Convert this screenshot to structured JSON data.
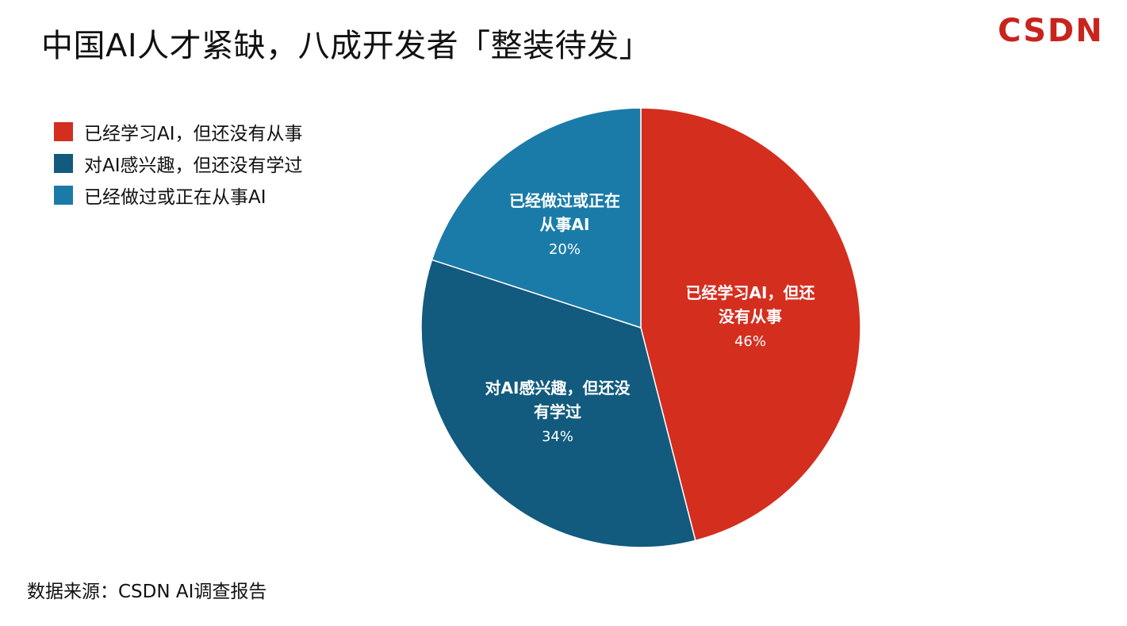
{
  "title": "中国AI人才紧缺，八成开发者「整装待发」",
  "logo_text": "CSDN",
  "source": "数据来源：CSDN AI调查报告",
  "chart_data": {
    "type": "pie",
    "title": "中国AI人才紧缺，八成开发者「整装待发」",
    "legend_position": "top-left",
    "slices": [
      {
        "name": "已经学习AI，但还没有从事",
        "label_lines": [
          "已经学习AI，但还",
          "没有从事"
        ],
        "value": 46,
        "percent_label": "46%",
        "color": "#d42e1f"
      },
      {
        "name": "对AI感兴趣，但还没有学过",
        "label_lines": [
          "对AI感兴趣，但还没",
          "有学过"
        ],
        "value": 34,
        "percent_label": "34%",
        "color": "#125a7e"
      },
      {
        "name": "已经做过或正在从事AI",
        "label_lines": [
          "已经做过或正在",
          "从事AI"
        ],
        "value": 20,
        "percent_label": "20%",
        "color": "#1b7ba8"
      }
    ]
  }
}
